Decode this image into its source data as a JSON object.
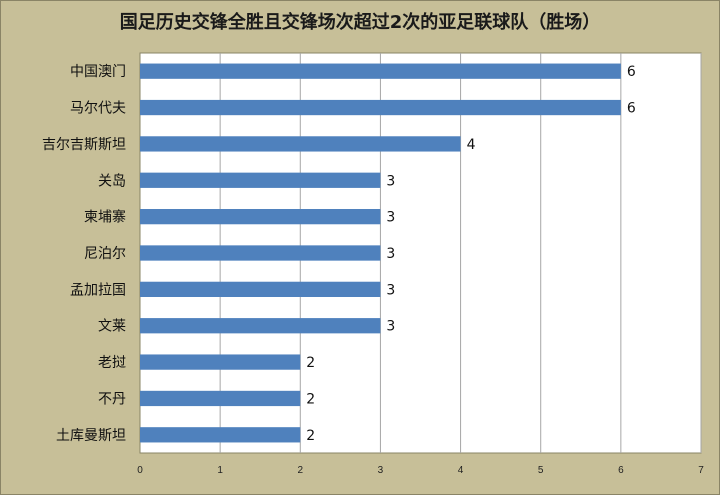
{
  "chart_data": {
    "type": "bar",
    "orientation": "horizontal",
    "title": "国足历史交锋全胜且交锋场次超过2次的亚足联球队（胜场）",
    "categories": [
      "中国澳门",
      "马尔代夫",
      "吉尔吉斯斯坦",
      "关岛",
      "柬埔寨",
      "尼泊尔",
      "孟加拉国",
      "文莱",
      "老挝",
      "不丹",
      "土库曼斯坦"
    ],
    "values": [
      6,
      6,
      4,
      3,
      3,
      3,
      3,
      3,
      2,
      2,
      2
    ],
    "xlim": [
      0,
      7
    ],
    "xticks": [
      0,
      1,
      2,
      3,
      4,
      5,
      6,
      7
    ],
    "grid": true,
    "legend": "none",
    "colors": {
      "bar": "#4f81bd",
      "plot_bg": "#ffffff",
      "outer_bg": "#c7bf98",
      "grid": "#a6a6a6"
    }
  }
}
